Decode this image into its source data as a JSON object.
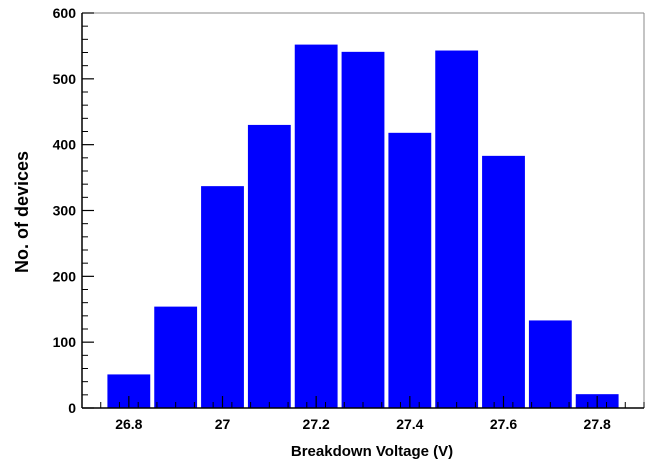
{
  "chart_data": {
    "type": "bar",
    "title": "",
    "xlabel": "Breakdown Voltage (V)",
    "ylabel": "No. of devices",
    "bins": [
      {
        "x0": 26.75,
        "x1": 26.85,
        "value": 51
      },
      {
        "x0": 26.85,
        "x1": 26.95,
        "value": 154
      },
      {
        "x0": 26.95,
        "x1": 27.05,
        "value": 337
      },
      {
        "x0": 27.05,
        "x1": 27.15,
        "value": 430
      },
      {
        "x0": 27.15,
        "x1": 27.25,
        "value": 552
      },
      {
        "x0": 27.25,
        "x1": 27.35,
        "value": 541
      },
      {
        "x0": 27.35,
        "x1": 27.45,
        "value": 418
      },
      {
        "x0": 27.45,
        "x1": 27.55,
        "value": 543
      },
      {
        "x0": 27.55,
        "x1": 27.65,
        "value": 383
      },
      {
        "x0": 27.65,
        "x1": 27.75,
        "value": 133
      },
      {
        "x0": 27.75,
        "x1": 27.85,
        "value": 21
      }
    ],
    "xlim": [
      26.7,
      27.9
    ],
    "ylim": [
      0,
      600
    ],
    "x_ticks": [
      "26.8",
      "27",
      "27.2",
      "27.4",
      "27.6",
      "27.8"
    ],
    "y_ticks": [
      "0",
      "100",
      "200",
      "300",
      "400",
      "500",
      "600"
    ],
    "grid": false,
    "legend": "none",
    "bar_color": "#0000ff"
  }
}
